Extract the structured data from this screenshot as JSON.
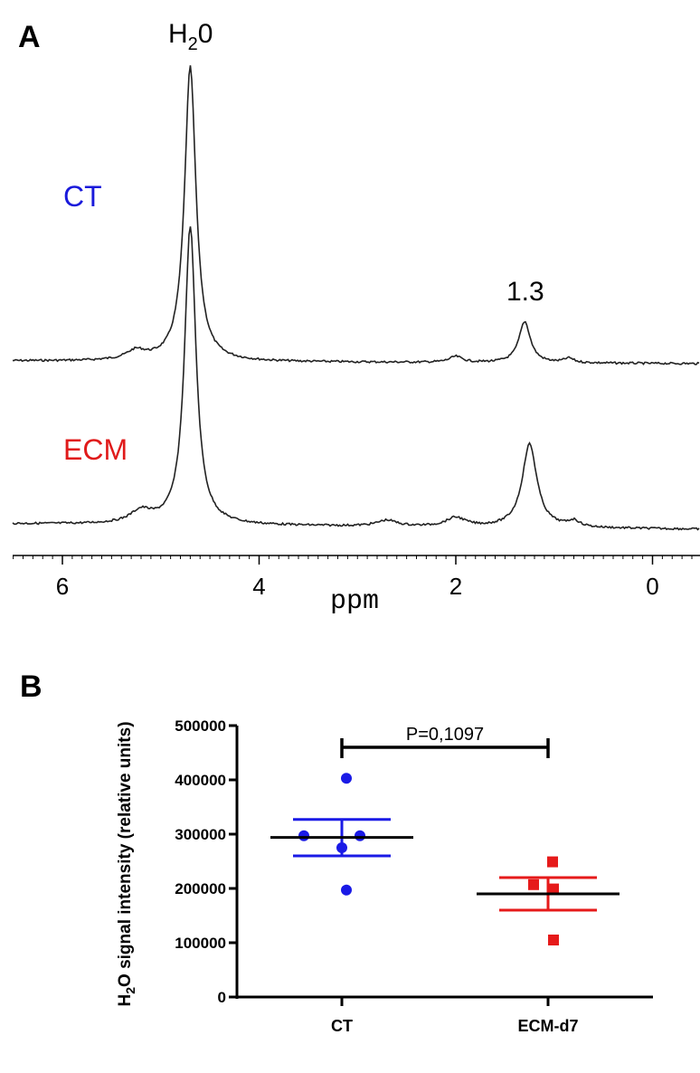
{
  "chart_data": [
    {
      "type": "line",
      "panel": "A",
      "xlabel": "ppm",
      "x_reversed": true,
      "xlim": [
        6.5,
        -0.5
      ],
      "xticks": [
        6,
        4,
        2,
        0
      ],
      "peak_labels": [
        "H",
        "2",
        "0",
        "1.3"
      ],
      "series": [
        {
          "name": "CT",
          "color": "#1a1adb",
          "peaks": [
            {
              "ppm": 4.7,
              "height": 1.0
            },
            {
              "ppm": 1.3,
              "height": 0.14
            },
            {
              "ppm": 5.25,
              "height": 0.03
            },
            {
              "ppm": 2.0,
              "height": 0.02
            },
            {
              "ppm": 0.85,
              "height": 0.015
            }
          ]
        },
        {
          "name": "ECM",
          "color": "#e01a1a",
          "peaks": [
            {
              "ppm": 4.7,
              "height": 1.0
            },
            {
              "ppm": 1.25,
              "height": 0.28
            },
            {
              "ppm": 5.2,
              "height": 0.04
            },
            {
              "ppm": 2.0,
              "height": 0.03
            },
            {
              "ppm": 2.7,
              "height": 0.02
            },
            {
              "ppm": 0.8,
              "height": 0.02
            }
          ]
        }
      ]
    },
    {
      "type": "scatter",
      "panel": "B",
      "ylabel_parts": [
        "H",
        "2",
        "O  signal intensity (relative units)"
      ],
      "ylim": [
        0,
        500000
      ],
      "yticks": [
        "0",
        "100000",
        "200000",
        "300000",
        "400000",
        "500000"
      ],
      "categories": [
        "CT",
        "ECM-d7"
      ],
      "significance": "P=0,1097",
      "series": [
        {
          "name": "CT",
          "color": "#1a1ae6",
          "marker": "circle",
          "values": [
            403000,
            297000,
            297000,
            275000,
            197000
          ],
          "mean": 294000,
          "sem_low": 260000,
          "sem_high": 327000
        },
        {
          "name": "ECM-d7",
          "color": "#e61a1a",
          "marker": "square",
          "values": [
            249000,
            207000,
            199000,
            105000
          ],
          "mean": 190000,
          "sem_low": 160000,
          "sem_high": 220000
        }
      ]
    }
  ]
}
